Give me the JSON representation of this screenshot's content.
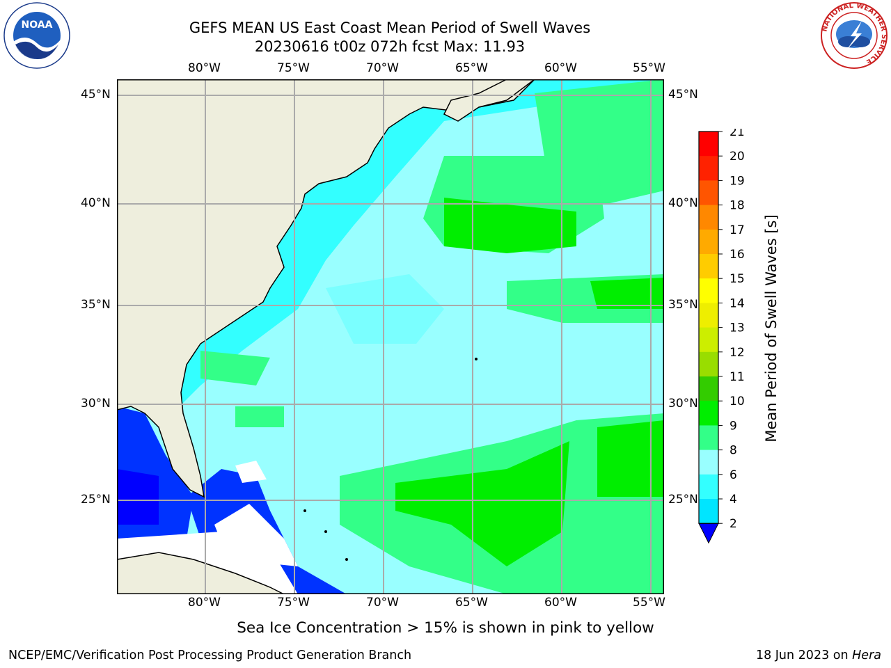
{
  "title_line1": "GEFS MEAN US East Coast Mean Period of Swell Waves",
  "title_line2": "20230616 t00z 072h fcst   Max: 11.93",
  "map": {
    "lon_ticks": [
      "80°W",
      "75°W",
      "70°W",
      "65°W",
      "60°W",
      "55°W"
    ],
    "lat_ticks": [
      "45°N",
      "40°N",
      "35°N",
      "30°N",
      "25°N"
    ],
    "colors": {
      "land": "#eeeedd",
      "coastline": "#000000",
      "gridline": "#aaaaaa"
    }
  },
  "colorbar": {
    "label": "Mean Period of Swell Waves [s]",
    "ticks": [
      "2",
      "4",
      "6",
      "8",
      "9",
      "10",
      "11",
      "12",
      "13",
      "14",
      "15",
      "16",
      "17",
      "18",
      "19",
      "20",
      "21"
    ],
    "colors": [
      "#0033ff",
      "#00e5ff",
      "#33ffff",
      "#99ffff",
      "#33ff88",
      "#00ee00",
      "#33cc00",
      "#99dd00",
      "#ccee00",
      "#eeee00",
      "#ffff00",
      "#ffcc00",
      "#ffaa00",
      "#ff8800",
      "#ff5500",
      "#ff2200",
      "#ff0000"
    ],
    "under_color": "#0000ff"
  },
  "note": "Sea Ice Concentration > 15% is shown in pink to yellow",
  "footer_left": "NCEP/EMC/Verification Post Processing Product Generation Branch",
  "footer_right_prefix": "18 Jun 2023 on ",
  "footer_right_host": "Hera",
  "logos": {
    "noaa_text": "NOAA",
    "nws_ring_text": "NATIONAL WEATHER SERVICE"
  }
}
